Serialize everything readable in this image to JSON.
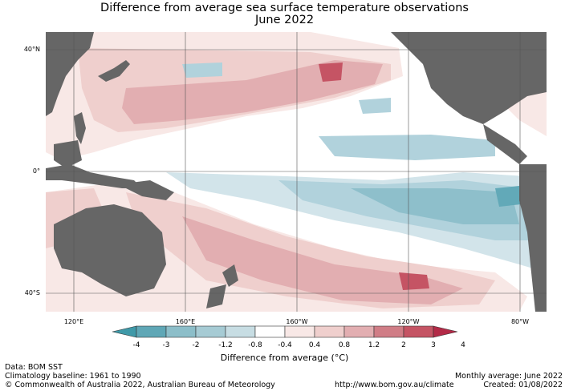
{
  "title": {
    "line1": "Difference from average sea surface temperature observations",
    "line2": "June 2022"
  },
  "map": {
    "region": "Pacific Ocean",
    "lat_labels": [
      "40°N",
      "0°",
      "40°S"
    ],
    "lon_labels": [
      "120°E",
      "160°E",
      "160°W",
      "120°W",
      "80°W"
    ],
    "colors": {
      "land": "#666666",
      "ocean_neutral": "#ffffff",
      "warm_1": "#f8e8e6",
      "warm_2": "#efcfcd",
      "warm_3": "#e2aeb1",
      "warm_4": "#d98f95",
      "warm_5": "#c55464",
      "cool_1": "#d2e4ea",
      "cool_2": "#b1d2dc",
      "cool_3": "#8ebfcb",
      "cool_4": "#62a9b8",
      "grid": "#555555"
    }
  },
  "colorbar": {
    "ticks": [
      "-4",
      "-3",
      "-2",
      "-1.2",
      "-0.8",
      "-0.4",
      "0.4",
      "0.8",
      "1.2",
      "2",
      "3",
      "4"
    ],
    "colors": [
      "#3f99a8",
      "#5fa7b6",
      "#8cbec9",
      "#a6cbd4",
      "#c7dde3",
      "#ffffff",
      "#f8e8e6",
      "#efcfcd",
      "#e2aeb1",
      "#d07d86",
      "#c55464",
      "#b32a47"
    ],
    "label": "Difference from average (°C)"
  },
  "footer": {
    "data_source": "Data: BOM SST",
    "baseline": "Climatology baseline: 1961 to 1990",
    "copyright": "© Commonwealth of Australia 2022, Australian Bureau of Meteorology",
    "url": "http://www.bom.gov.au/climate",
    "monthly_average": "Monthly average: June 2022",
    "created": "Created: 01/08/2022"
  }
}
